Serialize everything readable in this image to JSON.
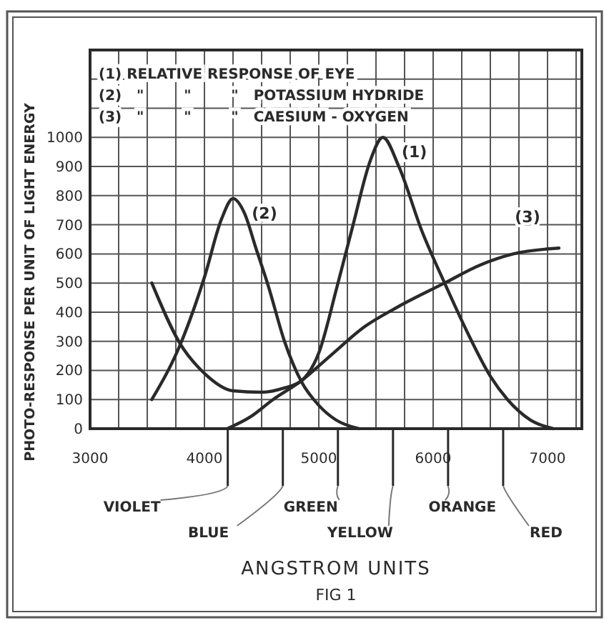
{
  "chart_data": {
    "type": "line",
    "xlabel": "ANGSTROM UNITS",
    "ylabel": "PHOTO-RESPONSE PER UNIT OF LIGHT ENERGY",
    "xlim": [
      3000,
      7300
    ],
    "ylim": [
      0,
      1300
    ],
    "xticks": [
      3000,
      {
        "value": 3250,
        "label": null
      },
      {
        "value": 3500,
        "label": null
      },
      {
        "value": 3750,
        "label": null
      },
      4000,
      {
        "value": 4250,
        "label": null
      },
      {
        "value": 4500,
        "label": null
      },
      {
        "value": 4750,
        "label": null
      },
      5000,
      {
        "value": 5250,
        "label": null
      },
      {
        "value": 5500,
        "label": null
      },
      {
        "value": 5750,
        "label": null
      },
      6000,
      {
        "value": 6250,
        "label": null
      },
      {
        "value": 6500,
        "label": null
      },
      {
        "value": 6750,
        "label": null
      },
      7000,
      {
        "value": 7250,
        "label": null
      }
    ],
    "yticks": [
      0,
      100,
      200,
      300,
      400,
      500,
      600,
      700,
      800,
      900,
      1000,
      {
        "value": 1100,
        "label": null
      },
      {
        "value": 1200,
        "label": null
      }
    ],
    "grid": true,
    "marker": "none",
    "line_style": "solid",
    "series": [
      {
        "name": "(1)",
        "color": "#2a2a2a",
        "x": [
          3540,
          3790,
          4000,
          4250,
          4500,
          4700,
          4850,
          5000,
          5160,
          5300,
          5450,
          5560,
          5700,
          5900,
          6100,
          6300,
          6500,
          6650,
          6850,
          7050
        ],
        "values": [
          500,
          290,
          190,
          130,
          125,
          140,
          165,
          260,
          488,
          700,
          920,
          1000,
          900,
          680,
          500,
          330,
          180,
          100,
          30,
          0
        ]
      },
      {
        "name": "(2)",
        "color": "#2a2a2a",
        "x": [
          3540,
          3790,
          4000,
          4150,
          4250,
          4350,
          4450,
          4560,
          4700,
          4850,
          5000,
          5150,
          5350
        ],
        "values": [
          100,
          290,
          520,
          720,
          790,
          740,
          620,
          488,
          300,
          160,
          80,
          30,
          0
        ]
      },
      {
        "name": "(3)",
        "color": "#2a2a2a",
        "x": [
          4200,
          4400,
          4600,
          4850,
          5100,
          5400,
          5700,
          6100,
          6400,
          6700,
          7100
        ],
        "values": [
          0,
          40,
          100,
          165,
          250,
          350,
          420,
          500,
          560,
          600,
          620
        ]
      }
    ],
    "annotations": [
      "(1) RELATIVE RESPONSE OF EYE",
      "(2)   \"        \"        \"   POTASSIUM HYDRIDE",
      "(3)   \"        \"        \"   CAESIUM - OXYGEN",
      "VIOLET",
      "BLUE",
      "GREEN",
      "YELLOW",
      "ORANGE",
      "RED",
      "FIG 1"
    ]
  }
}
